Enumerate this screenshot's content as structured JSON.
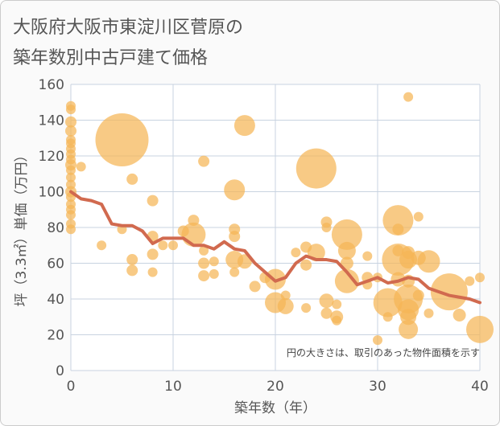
{
  "title": {
    "line1": "大阪府大阪市東淀川区菅原の",
    "line2": "築年数別中古戸建て価格"
  },
  "chart_data": {
    "type": "scatter",
    "title": "大阪府大阪市東淀川区菅原の築年数別中古戸建て価格",
    "xlabel": "築年数（年）",
    "ylabel": "坪（3.3㎡）単価（万円）",
    "xlim": [
      0,
      40
    ],
    "ylim": [
      0,
      160
    ],
    "xticks": [
      "0",
      "10",
      "20",
      "30",
      "40"
    ],
    "yticks": [
      "0",
      "20",
      "40",
      "60",
      "80",
      "100",
      "120",
      "140",
      "160"
    ],
    "grid": true,
    "note": "円の大きさは、取引のあった物件面積を示す",
    "colors": {
      "bubble": "#f5b556",
      "line": "#d16a4f",
      "grid": "#c8d3e0"
    },
    "series": [
      {
        "type": "bubble",
        "points": [
          {
            "x": 0,
            "y": 148,
            "s": 6
          },
          {
            "x": 0,
            "y": 146,
            "s": 6
          },
          {
            "x": 0,
            "y": 139,
            "s": 7
          },
          {
            "x": 0,
            "y": 134,
            "s": 7
          },
          {
            "x": 0,
            "y": 129,
            "s": 6
          },
          {
            "x": 0,
            "y": 127,
            "s": 6
          },
          {
            "x": 0,
            "y": 124,
            "s": 6
          },
          {
            "x": 0,
            "y": 121,
            "s": 6
          },
          {
            "x": 0,
            "y": 118,
            "s": 6
          },
          {
            "x": 0,
            "y": 115,
            "s": 7
          },
          {
            "x": 0,
            "y": 112,
            "s": 6
          },
          {
            "x": 0,
            "y": 108,
            "s": 6
          },
          {
            "x": 0,
            "y": 104,
            "s": 6
          },
          {
            "x": 0,
            "y": 100,
            "s": 7
          },
          {
            "x": 0,
            "y": 97,
            "s": 6
          },
          {
            "x": 0,
            "y": 93,
            "s": 6
          },
          {
            "x": 0,
            "y": 90,
            "s": 6
          },
          {
            "x": 0,
            "y": 87,
            "s": 6
          },
          {
            "x": 0,
            "y": 82,
            "s": 6
          },
          {
            "x": 0,
            "y": 79,
            "s": 6
          },
          {
            "x": 1,
            "y": 114,
            "s": 6
          },
          {
            "x": 3,
            "y": 70,
            "s": 6
          },
          {
            "x": 5,
            "y": 129,
            "s": 33
          },
          {
            "x": 5,
            "y": 79,
            "s": 6
          },
          {
            "x": 6,
            "y": 107,
            "s": 7
          },
          {
            "x": 6,
            "y": 62,
            "s": 7
          },
          {
            "x": 6,
            "y": 56,
            "s": 7
          },
          {
            "x": 8,
            "y": 95,
            "s": 7
          },
          {
            "x": 8,
            "y": 75,
            "s": 7
          },
          {
            "x": 8,
            "y": 65,
            "s": 7
          },
          {
            "x": 8,
            "y": 55,
            "s": 6
          },
          {
            "x": 9,
            "y": 70,
            "s": 6
          },
          {
            "x": 10,
            "y": 70,
            "s": 6
          },
          {
            "x": 11,
            "y": 78,
            "s": 7
          },
          {
            "x": 12,
            "y": 84,
            "s": 7
          },
          {
            "x": 12,
            "y": 76,
            "s": 15
          },
          {
            "x": 13,
            "y": 117,
            "s": 7
          },
          {
            "x": 13,
            "y": 67,
            "s": 6
          },
          {
            "x": 13,
            "y": 60,
            "s": 7
          },
          {
            "x": 13,
            "y": 53,
            "s": 7
          },
          {
            "x": 14,
            "y": 61,
            "s": 6
          },
          {
            "x": 14,
            "y": 54,
            "s": 6
          },
          {
            "x": 16,
            "y": 101,
            "s": 13
          },
          {
            "x": 16,
            "y": 79,
            "s": 7
          },
          {
            "x": 16,
            "y": 75,
            "s": 7
          },
          {
            "x": 16,
            "y": 62,
            "s": 11
          },
          {
            "x": 16,
            "y": 55,
            "s": 6
          },
          {
            "x": 17,
            "y": 137,
            "s": 13
          },
          {
            "x": 17,
            "y": 61,
            "s": 9
          },
          {
            "x": 18,
            "y": 47,
            "s": 7
          },
          {
            "x": 19,
            "y": 52,
            "s": 7
          },
          {
            "x": 20,
            "y": 51,
            "s": 13
          },
          {
            "x": 20,
            "y": 38,
            "s": 13
          },
          {
            "x": 21,
            "y": 36,
            "s": 10
          },
          {
            "x": 21,
            "y": 42,
            "s": 6
          },
          {
            "x": 22,
            "y": 66,
            "s": 6
          },
          {
            "x": 23,
            "y": 69,
            "s": 7
          },
          {
            "x": 23,
            "y": 59,
            "s": 7
          },
          {
            "x": 23,
            "y": 35,
            "s": 6
          },
          {
            "x": 24,
            "y": 113,
            "s": 25
          },
          {
            "x": 24,
            "y": 66,
            "s": 11
          },
          {
            "x": 25,
            "y": 83,
            "s": 7
          },
          {
            "x": 25,
            "y": 80,
            "s": 6
          },
          {
            "x": 25,
            "y": 39,
            "s": 9
          },
          {
            "x": 25,
            "y": 32,
            "s": 7
          },
          {
            "x": 26,
            "y": 37,
            "s": 6
          },
          {
            "x": 26,
            "y": 30,
            "s": 8
          },
          {
            "x": 26,
            "y": 28,
            "s": 6
          },
          {
            "x": 27,
            "y": 76,
            "s": 19
          },
          {
            "x": 27,
            "y": 67,
            "s": 11
          },
          {
            "x": 27,
            "y": 60,
            "s": 8
          },
          {
            "x": 27,
            "y": 50,
            "s": 15
          },
          {
            "x": 29,
            "y": 64,
            "s": 6
          },
          {
            "x": 29,
            "y": 52,
            "s": 7
          },
          {
            "x": 29,
            "y": 48,
            "s": 6
          },
          {
            "x": 30,
            "y": 52,
            "s": 6
          },
          {
            "x": 30,
            "y": 17,
            "s": 6
          },
          {
            "x": 31,
            "y": 38,
            "s": 18
          },
          {
            "x": 31,
            "y": 30,
            "s": 6
          },
          {
            "x": 32,
            "y": 84,
            "s": 19
          },
          {
            "x": 32,
            "y": 79,
            "s": 7
          },
          {
            "x": 32,
            "y": 67,
            "s": 7
          },
          {
            "x": 32,
            "y": 62,
            "s": 20
          },
          {
            "x": 32,
            "y": 51,
            "s": 9
          },
          {
            "x": 33,
            "y": 153,
            "s": 6
          },
          {
            "x": 33,
            "y": 66,
            "s": 8
          },
          {
            "x": 33,
            "y": 62,
            "s": 11
          },
          {
            "x": 33,
            "y": 50,
            "s": 8
          },
          {
            "x": 33,
            "y": 40,
            "s": 18
          },
          {
            "x": 33,
            "y": 34,
            "s": 13
          },
          {
            "x": 33,
            "y": 30,
            "s": 10
          },
          {
            "x": 33,
            "y": 23,
            "s": 12
          },
          {
            "x": 34,
            "y": 86,
            "s": 6
          },
          {
            "x": 34,
            "y": 63,
            "s": 9
          },
          {
            "x": 34,
            "y": 42,
            "s": 7
          },
          {
            "x": 35,
            "y": 61,
            "s": 14
          },
          {
            "x": 35,
            "y": 32,
            "s": 6
          },
          {
            "x": 37,
            "y": 44,
            "s": 23
          },
          {
            "x": 38,
            "y": 31,
            "s": 8
          },
          {
            "x": 39,
            "y": 50,
            "s": 6
          },
          {
            "x": 40,
            "y": 52,
            "s": 6
          },
          {
            "x": 40,
            "y": 23,
            "s": 17
          }
        ]
      },
      {
        "type": "line",
        "x": [
          0,
          1,
          2,
          3,
          4,
          5,
          6,
          7,
          8,
          9,
          10,
          11,
          12,
          13,
          14,
          15,
          16,
          17,
          18,
          19,
          20,
          21,
          22,
          23,
          24,
          25,
          26,
          27,
          28,
          29,
          30,
          31,
          32,
          33,
          34,
          35,
          36,
          37,
          38,
          39,
          40
        ],
        "values": [
          100,
          96,
          95,
          93,
          82,
          81,
          81,
          78,
          71,
          74,
          74,
          74,
          70,
          70,
          68,
          72,
          68,
          67,
          60,
          55,
          50,
          52,
          60,
          64,
          62,
          62,
          61,
          55,
          48,
          50,
          52,
          49,
          50,
          52,
          51,
          46,
          44,
          42,
          41,
          40,
          38
        ]
      }
    ]
  }
}
